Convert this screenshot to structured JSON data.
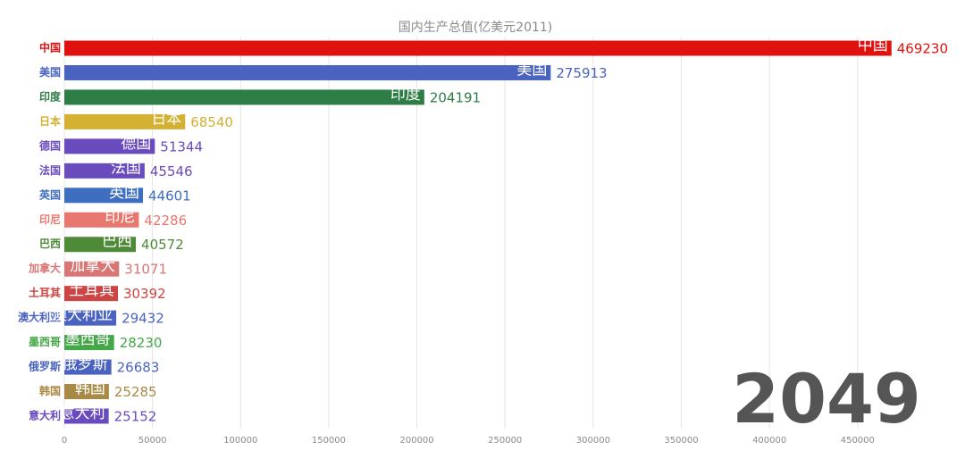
{
  "chart_data": {
    "type": "bar",
    "orientation": "horizontal",
    "title": "国内生产总值(亿美元2011)",
    "annotation": "2049",
    "categories": [
      "中国",
      "美国",
      "印度",
      "日本",
      "德国",
      "法国",
      "英国",
      "印尼",
      "巴西",
      "加拿大",
      "土耳其",
      "澳大利亚",
      "墨西哥",
      "俄罗斯",
      "韩国",
      "意大利"
    ],
    "values": [
      469230,
      275913,
      204191,
      68540,
      51344,
      45546,
      44601,
      42286,
      40572,
      31071,
      30392,
      29432,
      28230,
      26683,
      25285,
      25152
    ],
    "colors": [
      "#e0120f",
      "#4a63c0",
      "#2e7d46",
      "#d4b033",
      "#6a4bbd",
      "#6a4bbd",
      "#3e6ec0",
      "#e8776f",
      "#4e8a38",
      "#d87575",
      "#cc4444",
      "#4a63c0",
      "#45a848",
      "#4a63c0",
      "#a88a45",
      "#6a4bbd"
    ],
    "xlim": [
      0,
      480000
    ],
    "xticks": [
      0,
      50000,
      100000,
      150000,
      200000,
      250000,
      300000,
      350000,
      400000,
      450000
    ],
    "grid": true
  }
}
